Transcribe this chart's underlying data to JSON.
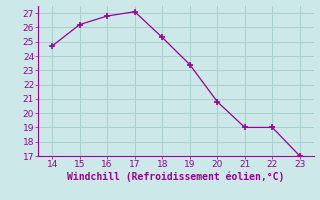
{
  "x": [
    14,
    15,
    16,
    17,
    18,
    19,
    20,
    21,
    22,
    23
  ],
  "y": [
    24.7,
    26.2,
    26.8,
    27.1,
    25.3,
    23.4,
    20.8,
    19.0,
    19.0,
    17.0
  ],
  "line_color": "#990099",
  "marker": "+",
  "marker_size": 5,
  "marker_linewidth": 1.2,
  "xlabel": "Windchill (Refroidissement éolien,°C)",
  "xlabel_color": "#990099",
  "background_color": "#cce8e8",
  "grid_color": "#aacece",
  "tick_color": "#990099",
  "spine_color": "#990099",
  "xlim": [
    13.5,
    23.5
  ],
  "ylim": [
    17,
    27.5
  ],
  "xticks": [
    14,
    15,
    16,
    17,
    18,
    19,
    20,
    21,
    22,
    23
  ],
  "yticks": [
    17,
    18,
    19,
    20,
    21,
    22,
    23,
    24,
    25,
    26,
    27
  ],
  "tick_labelsize": 6.5,
  "xlabel_fontsize": 7.0
}
